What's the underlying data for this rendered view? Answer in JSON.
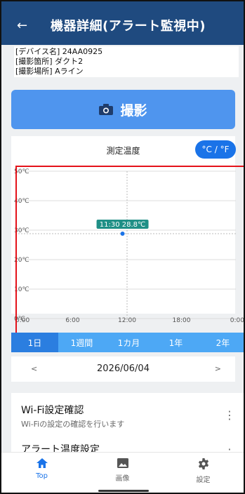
{
  "header": {
    "back_label": "←",
    "title": "機器詳細(アラート監視中)"
  },
  "device_info": {
    "line1": "[デバイス名] 24AA0925",
    "line2": "[撮影箇所] ダクト2",
    "line3": "[撮影場所] Aライン"
  },
  "capture_button": {
    "label": "撮影"
  },
  "chart_header": {
    "title": "測定温度",
    "unit_toggle": "°C / °F"
  },
  "chart_data": {
    "type": "scatter",
    "title": "測定温度",
    "x_ticks": [
      "0:00",
      "6:00",
      "12:00",
      "18:00",
      "0:00"
    ],
    "y_ticks": [
      "0℃",
      "10℃",
      "20℃",
      "30℃",
      "40℃",
      "50℃"
    ],
    "ylim": [
      0,
      50
    ],
    "xlim": [
      0,
      24
    ],
    "points": [
      {
        "x": 11.5,
        "y": 28.8
      }
    ],
    "annotation": "11:30 28.8℃",
    "series_color": "#1a73e8",
    "label_bg": "#1f8f86"
  },
  "range_tabs": [
    "1日",
    "1週間",
    "1カ月",
    "1年",
    "2年"
  ],
  "date_nav": {
    "prev": "<",
    "date": "2026/06/04",
    "next": ">"
  },
  "menu": [
    {
      "title": "Wi-Fi設定確認",
      "subtitle": "Wi-Fiの設定の確認を行います"
    },
    {
      "title": "アラート温度設定",
      "subtitle": ""
    }
  ],
  "menu_more": "⋮",
  "bottom_nav": [
    {
      "label": "Top",
      "icon": "home-icon"
    },
    {
      "label": "画像",
      "icon": "image-icon"
    },
    {
      "label": "設定",
      "icon": "gear-icon"
    }
  ]
}
